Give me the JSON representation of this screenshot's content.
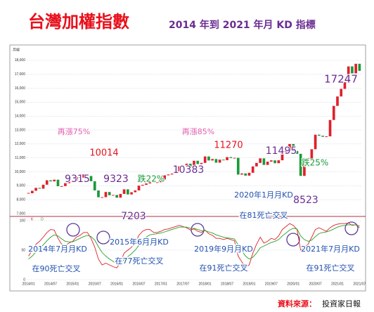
{
  "chart_data": {
    "type": "candlestick",
    "title": "台灣加權指數",
    "subtitle": "2014 年到 2021 年月 KD 指標",
    "period_label": "月線",
    "source_label": "資料來源：",
    "source": "投資家日報",
    "categories": [
      "2014/01",
      null,
      null,
      null,
      null,
      null,
      "2014/07",
      null,
      null,
      null,
      null,
      null,
      "2015/01",
      null,
      null,
      null,
      null,
      null,
      "2015/07",
      null,
      null,
      null,
      null,
      null,
      "2016/01",
      null,
      null,
      null,
      null,
      null,
      "2016/07",
      null,
      null,
      null,
      null,
      null,
      "2017/01",
      null,
      null,
      null,
      null,
      null,
      "2017/07",
      null,
      null,
      null,
      null,
      null,
      "2018/01",
      null,
      null,
      null,
      null,
      null,
      "2018/07",
      null,
      null,
      null,
      null,
      null,
      "2019/01",
      null,
      null,
      null,
      null,
      null,
      "2019/07",
      null,
      null,
      null,
      null,
      null,
      "2020/01",
      null,
      null,
      null,
      null,
      null,
      "2020/07",
      null,
      null,
      null,
      null,
      null,
      "2021/01",
      null,
      null,
      null,
      null,
      null,
      "2021/07"
    ],
    "values": [
      8462,
      8639,
      8849,
      8791,
      9075,
      9393,
      9315,
      9436,
      8966,
      8974,
      9187,
      9307,
      9361,
      9622,
      9586,
      9820,
      9701,
      9323,
      8665,
      8174,
      8181,
      8554,
      8320,
      8338,
      8145,
      8411,
      8744,
      8377,
      8535,
      8666,
      9008,
      9069,
      9166,
      9290,
      9240,
      9253,
      9448,
      9750,
      9811,
      9872,
      10041,
      10395,
      10427,
      10585,
      10384,
      10794,
      10560,
      10642,
      11104,
      10815,
      10919,
      10657,
      10875,
      10837,
      11057,
      10988,
      11006,
      9802,
      9888,
      9727,
      9932,
      10389,
      10641,
      10967,
      10498,
      10730,
      10823,
      10618,
      10829,
      11358,
      11489,
      11997,
      11495,
      11292,
      9708,
      10992,
      10942,
      11621,
      12665,
      12592,
      12516,
      12546,
      13722,
      14733,
      15410,
      15953,
      16431,
      17567,
      17068,
      17755,
      17247
    ],
    "up_color": "#e0202a",
    "down_color": "#1a9a3a",
    "ylim": [
      7000,
      18500
    ],
    "yticks": [
      {
        "value": 7000,
        "label": "7,000"
      },
      {
        "value": 8000,
        "label": "8,000"
      },
      {
        "value": 9000,
        "label": "9,000"
      },
      {
        "value": 10000,
        "label": "10,000"
      },
      {
        "value": 11000,
        "label": "11,000"
      },
      {
        "value": 12000,
        "label": "12,000"
      },
      {
        "value": 13000,
        "label": "13,000"
      },
      {
        "value": 14000,
        "label": "14,000"
      },
      {
        "value": 15000,
        "label": "15,000"
      },
      {
        "value": 16000,
        "label": "16,000"
      },
      {
        "value": 17000,
        "label": "17,000"
      },
      {
        "value": 18000,
        "label": "18,000"
      }
    ],
    "kd": {
      "ylim": [
        0,
        100
      ],
      "yticks": [
        0,
        50,
        100
      ],
      "series": [
        {
          "name": "K",
          "color": "#e0202a",
          "values": [
            40,
            50,
            60,
            65,
            72,
            80,
            85,
            84,
            70,
            60,
            58,
            62,
            65,
            72,
            75,
            80,
            80,
            70,
            55,
            35,
            25,
            28,
            25,
            22,
            20,
            30,
            45,
            50,
            55,
            62,
            75,
            82,
            85,
            85,
            80,
            80,
            82,
            85,
            86,
            88,
            90,
            92,
            90,
            88,
            84,
            86,
            82,
            80,
            84,
            78,
            75,
            70,
            70,
            68,
            70,
            68,
            66,
            40,
            30,
            22,
            25,
            45,
            60,
            72,
            62,
            65,
            70,
            68,
            74,
            85,
            90,
            95,
            92,
            85,
            50,
            55,
            60,
            72,
            85,
            88,
            85,
            82,
            88,
            92,
            94,
            95,
            95,
            96,
            92,
            93,
            88
          ]
        },
        {
          "name": "D",
          "color": "#2aa02a",
          "values": [
            35,
            40,
            47,
            53,
            59,
            66,
            72,
            76,
            74,
            69,
            65,
            64,
            64,
            67,
            70,
            73,
            75,
            73,
            67,
            56,
            46,
            40,
            35,
            31,
            27,
            28,
            34,
            39,
            44,
            50,
            58,
            66,
            72,
            76,
            77,
            78,
            79,
            81,
            83,
            85,
            87,
            89,
            89,
            89,
            87,
            87,
            85,
            83,
            83,
            81,
            79,
            76,
            74,
            72,
            71,
            70,
            69,
            59,
            49,
            40,
            35,
            38,
            45,
            54,
            57,
            60,
            63,
            65,
            68,
            74,
            79,
            84,
            87,
            86,
            74,
            68,
            65,
            67,
            73,
            78,
            80,
            81,
            83,
            86,
            89,
            91,
            92,
            93,
            93,
            93,
            91
          ]
        }
      ]
    },
    "annotations": [
      "再漲75%",
      "10014",
      "9315",
      "9323",
      "7203",
      "跌22%",
      "10383",
      "再漲85%",
      "11270",
      "11495",
      "跌25%",
      "8523",
      "17247",
      "2020年1月月KD",
      "在81死亡交叉",
      "2014年7月月KD",
      "在90死亡交叉",
      "2015年6月月KD",
      "在77死亡交叉",
      "2019年9月月KD",
      "在91死亡交叉",
      "2021年7月月KD",
      "在91死亡交叉"
    ]
  }
}
